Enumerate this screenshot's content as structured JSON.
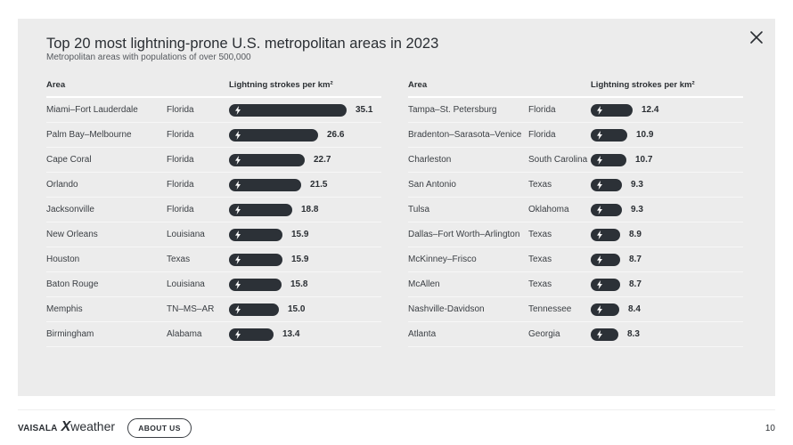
{
  "header": {
    "title": "Top 20 most lightning-prone U.S. metropolitan areas in 2023",
    "subtitle": "Metropolitan areas with populations of over 500,000"
  },
  "columns": {
    "area": "Area",
    "strokes": "Lightning strokes per km²"
  },
  "chart_data": {
    "type": "bar",
    "title": "Top 20 most lightning-prone U.S. metropolitan areas in 2023",
    "subtitle": "Metropolitan areas with populations of over 500,000",
    "xlabel": "Lightning strokes per km²",
    "bar_color": "#2c3137",
    "icon": "lightning-bolt-icon",
    "rows": [
      {
        "area": "Miami–Fort Lauderdale",
        "state": "Florida",
        "value": 35.1
      },
      {
        "area": "Palm Bay–Melbourne",
        "state": "Florida",
        "value": 26.6
      },
      {
        "area": "Cape Coral",
        "state": "Florida",
        "value": 22.7
      },
      {
        "area": "Orlando",
        "state": "Florida",
        "value": 21.5
      },
      {
        "area": "Jacksonville",
        "state": "Florida",
        "value": 18.8
      },
      {
        "area": "New Orleans",
        "state": "Louisiana",
        "value": 15.9
      },
      {
        "area": "Houston",
        "state": "Texas",
        "value": 15.9
      },
      {
        "area": "Baton Rouge",
        "state": "Louisiana",
        "value": 15.8
      },
      {
        "area": "Memphis",
        "state": "TN–MS–AR",
        "value": 15.0
      },
      {
        "area": "Birmingham",
        "state": "Alabama",
        "value": 13.4
      },
      {
        "area": "Tampa–St. Petersburg",
        "state": "Florida",
        "value": 12.4
      },
      {
        "area": "Bradenton–Sarasota–Venice",
        "state": "Florida",
        "value": 10.9
      },
      {
        "area": "Charleston",
        "state": "South Carolina",
        "value": 10.7
      },
      {
        "area": "San Antonio",
        "state": "Texas",
        "value": 9.3
      },
      {
        "area": "Tulsa",
        "state": "Oklahoma",
        "value": 9.3
      },
      {
        "area": "Dallas–Fort Worth–Arlington",
        "state": "Texas",
        "value": 8.9
      },
      {
        "area": "McKinney–Frisco",
        "state": "Texas",
        "value": 8.7
      },
      {
        "area": "McAllen",
        "state": "Texas",
        "value": 8.7
      },
      {
        "area": "Nashville-Davidson",
        "state": "Tennessee",
        "value": 8.4
      },
      {
        "area": "Atlanta",
        "state": "Georgia",
        "value": 8.3
      }
    ]
  },
  "footer": {
    "brand_name": "VAISALA",
    "product_x": "X",
    "product_name": "weather",
    "about_label": "ABOUT US",
    "page_number": "10"
  },
  "icons": {
    "close": "close-icon",
    "bar_icon": "lightning-bolt-icon"
  }
}
